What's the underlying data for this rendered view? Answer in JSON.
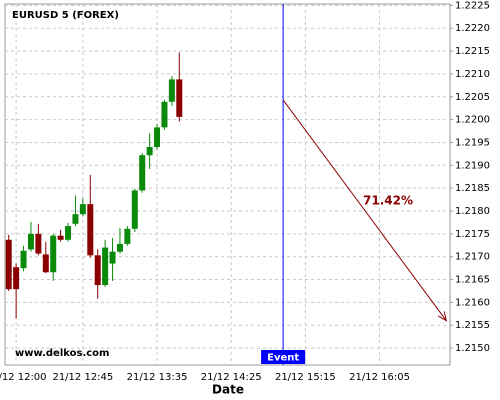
{
  "chart_data": {
    "type": "candlestick",
    "title": "EURUSD 5 (FOREX)",
    "xlabel": "Date",
    "watermark": "www.delkos.com",
    "categories": [
      null,
      "21/12 12:00",
      null,
      null,
      null,
      null,
      null,
      null,
      null,
      null,
      "21/12 12:45",
      null,
      null,
      null,
      null,
      null,
      null,
      null,
      null,
      null,
      "21/12 13:35",
      null,
      null,
      null,
      null,
      null,
      null,
      null,
      null,
      null,
      "21/12 14:25",
      null,
      null,
      null,
      null,
      null,
      null,
      null,
      null,
      null,
      "21/12 15:15",
      null,
      null,
      null,
      null,
      null,
      null,
      null,
      null,
      null,
      "21/12 16:05",
      null,
      null,
      null,
      null,
      null,
      null,
      null,
      null,
      null
    ],
    "open": [
      1.21737,
      1.21677,
      1.21675,
      1.21716,
      1.2175,
      1.21705,
      1.21666,
      1.21746,
      1.21737,
      1.21772,
      1.21793,
      1.21815,
      1.21703,
      1.21638,
      1.21685,
      1.21711,
      1.21728,
      1.21761,
      1.21845,
      1.21922,
      1.2194,
      1.21983,
      1.22039,
      1.22088,
      null,
      null,
      null,
      null,
      null,
      null,
      null,
      null,
      null,
      null,
      null,
      null,
      null,
      null,
      null,
      null,
      null,
      null,
      null,
      null,
      null,
      null,
      null,
      null,
      null,
      null,
      null,
      null,
      null,
      null,
      null,
      null,
      null,
      null,
      null,
      null
    ],
    "high": [
      1.21748,
      1.21685,
      1.21724,
      1.21776,
      1.21772,
      1.21733,
      1.2175,
      1.21759,
      1.21774,
      1.21834,
      1.21828,
      1.21879,
      1.21716,
      1.21737,
      1.21741,
      1.21763,
      1.21767,
      1.21849,
      1.21927,
      1.2197,
      1.21991,
      1.22043,
      1.22095,
      1.22147,
      null,
      null,
      null,
      null,
      null,
      null,
      null,
      null,
      null,
      null,
      null,
      null,
      null,
      null,
      null,
      null,
      null,
      null,
      null,
      null,
      null,
      null,
      null,
      null,
      null,
      null,
      null,
      null,
      null,
      null,
      null,
      null,
      null,
      null,
      null,
      null
    ],
    "low": [
      1.21625,
      1.21565,
      1.21668,
      1.21711,
      1.21703,
      1.21664,
      1.21647,
      1.21733,
      1.21733,
      1.21767,
      1.21789,
      1.21698,
      1.21608,
      1.21634,
      1.21647,
      1.21707,
      1.21724,
      1.21754,
      1.2184,
      1.21892,
      1.21935,
      1.21978,
      1.2203,
      1.21996,
      null,
      null,
      null,
      null,
      null,
      null,
      null,
      null,
      null,
      null,
      null,
      null,
      null,
      null,
      null,
      null,
      null,
      null,
      null,
      null,
      null,
      null,
      null,
      null,
      null,
      null,
      null,
      null,
      null,
      null,
      null,
      null,
      null,
      null,
      null,
      null
    ],
    "close": [
      1.21629,
      1.21629,
      1.21713,
      1.2175,
      1.21707,
      1.21666,
      1.21746,
      1.21737,
      1.21767,
      1.21793,
      1.21815,
      1.21703,
      1.21638,
      1.2172,
      1.21711,
      1.21728,
      1.21761,
      1.21845,
      1.21922,
      1.2194,
      1.21983,
      1.22039,
      1.22088,
      1.22006,
      null,
      null,
      null,
      null,
      null,
      null,
      null,
      null,
      null,
      null,
      null,
      null,
      null,
      null,
      null,
      null,
      null,
      null,
      null,
      null,
      null,
      null,
      null,
      null,
      null,
      null,
      null,
      null,
      null,
      null,
      null,
      null,
      null,
      null,
      null,
      null
    ],
    "up_color": "#0a8a0a",
    "down_color": "#8b0000",
    "ylim": [
      1.21463,
      1.22253
    ],
    "yticks": [
      {
        "value": 1.215,
        "label": "1.2150"
      },
      {
        "value": 1.2155,
        "label": "1.2155"
      },
      {
        "value": 1.216,
        "label": "1.2160"
      },
      {
        "value": 1.2165,
        "label": "1.2165"
      },
      {
        "value": 1.217,
        "label": "1.2170"
      },
      {
        "value": 1.2175,
        "label": "1.2175"
      },
      {
        "value": 1.218,
        "label": "1.2180"
      },
      {
        "value": 1.2185,
        "label": "1.2185"
      },
      {
        "value": 1.219,
        "label": "1.2190"
      },
      {
        "value": 1.2195,
        "label": "1.2195"
      },
      {
        "value": 1.22,
        "label": "1.2200"
      },
      {
        "value": 1.2205,
        "label": "1.2205"
      },
      {
        "value": 1.221,
        "label": "1.2210"
      },
      {
        "value": 1.2215,
        "label": "1.2215"
      },
      {
        "value": 1.222,
        "label": "1.2220"
      },
      {
        "value": 1.2225,
        "label": "1.2225"
      }
    ],
    "grid": true,
    "event": {
      "index": 37,
      "label": "Event",
      "color": "#0000ff"
    },
    "arrow": {
      "x": [
        37,
        59
      ],
      "y": [
        1.22043,
        1.2156
      ],
      "label": "71.42%",
      "color": "#8b0000"
    }
  }
}
